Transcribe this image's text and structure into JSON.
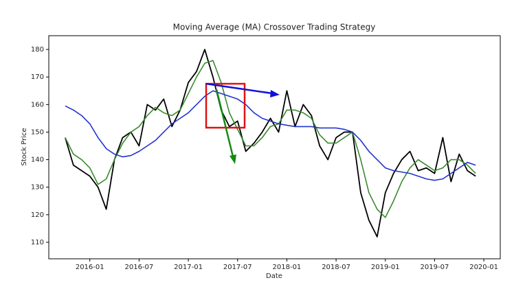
{
  "chart_data": {
    "type": "line",
    "title": "Moving Average (MA) Crossover Trading Strategy",
    "xlabel": "Date",
    "ylabel": "Stock Price",
    "x": [
      "2015-10",
      "2015-11",
      "2015-12",
      "2016-01",
      "2016-02",
      "2016-03",
      "2016-04",
      "2016-05",
      "2016-06",
      "2016-07",
      "2016-08",
      "2016-09",
      "2016-10",
      "2016-11",
      "2016-12",
      "2017-01",
      "2017-02",
      "2017-03",
      "2017-04",
      "2017-05",
      "2017-06",
      "2017-07",
      "2017-08",
      "2017-09",
      "2017-10",
      "2017-11",
      "2017-12",
      "2018-01",
      "2018-02",
      "2018-03",
      "2018-04",
      "2018-05",
      "2018-06",
      "2018-07",
      "2018-08",
      "2018-09",
      "2018-10",
      "2018-11",
      "2018-12",
      "2019-01",
      "2019-02",
      "2019-03",
      "2019-04",
      "2019-05",
      "2019-06",
      "2019-07",
      "2019-08",
      "2019-09",
      "2019-10",
      "2019-11",
      "2019-12"
    ],
    "series": [
      {
        "color": "#000000",
        "width": 1.8,
        "values": [
          148,
          138,
          136,
          134,
          130,
          122,
          140,
          148,
          150,
          145,
          160,
          158,
          162,
          152,
          158,
          168,
          172,
          180,
          170,
          158,
          152,
          154,
          143,
          146,
          150,
          155,
          150,
          165,
          152,
          160,
          156,
          145,
          140,
          148,
          150,
          150,
          128,
          118,
          112,
          128,
          135,
          140,
          143,
          136,
          137,
          135,
          148,
          132,
          142,
          136,
          134
        ]
      },
      {
        "color": "#3a8a2e",
        "width": 1.6,
        "values": [
          148,
          142,
          140,
          137,
          131,
          133,
          140,
          146,
          150,
          152,
          156,
          159,
          157,
          156,
          158,
          164,
          170,
          175,
          176,
          168,
          157,
          151,
          145,
          145,
          148,
          152,
          153,
          158,
          158,
          157,
          155,
          149,
          146,
          146,
          148,
          150,
          140,
          128,
          122,
          119,
          125,
          132,
          137,
          140,
          138,
          136,
          137,
          140,
          140,
          138,
          135
        ]
      },
      {
        "color": "#2233cc",
        "width": 1.6,
        "values": [
          159.5,
          158,
          156,
          153,
          148,
          144,
          142,
          141,
          141.5,
          143,
          145,
          147,
          150,
          153,
          155,
          157,
          160,
          163,
          165,
          164,
          163,
          162,
          160,
          157,
          155,
          154,
          153,
          152.5,
          152,
          152,
          152,
          151.5,
          151.5,
          151.5,
          151,
          150,
          147,
          143,
          140,
          137,
          136,
          135.5,
          135,
          134,
          133,
          132.5,
          133,
          135,
          137,
          139,
          138
        ]
      }
    ],
    "xlim": [
      "2015-08",
      "2020-03"
    ],
    "xticks": [
      "2016-01",
      "2016-07",
      "2017-01",
      "2017-07",
      "2018-01",
      "2018-07",
      "2019-01",
      "2019-07",
      "2020-01"
    ],
    "ylim": [
      104,
      185
    ],
    "yticks": [
      110,
      120,
      130,
      140,
      150,
      160,
      170,
      180
    ]
  }
}
